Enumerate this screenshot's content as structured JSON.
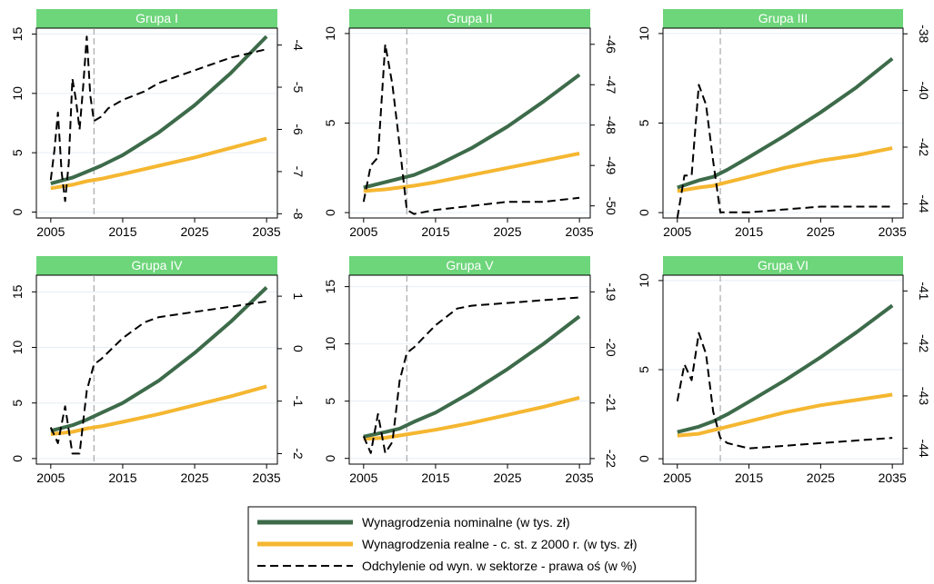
{
  "chart_data": {
    "type": "line",
    "panels": [
      {
        "title": "Grupa I",
        "x_ticks": [
          2005,
          2015,
          2025,
          2035
        ],
        "ylim_left": [
          -0.5,
          15.5
        ],
        "y_ticks_left": [
          0,
          5,
          10,
          15
        ],
        "ylim_right": [
          -8.1,
          -3.6
        ],
        "y_ticks_right": [
          -8,
          -7,
          -6,
          -5,
          -4
        ],
        "nominal": [
          [
            2005,
            2.4
          ],
          [
            2008,
            2.9
          ],
          [
            2010,
            3.4
          ],
          [
            2012,
            3.9
          ],
          [
            2015,
            4.8
          ],
          [
            2020,
            6.7
          ],
          [
            2025,
            9.0
          ],
          [
            2030,
            11.7
          ],
          [
            2035,
            14.8
          ]
        ],
        "real": [
          [
            2005,
            2.0
          ],
          [
            2008,
            2.3
          ],
          [
            2010,
            2.6
          ],
          [
            2012,
            2.8
          ],
          [
            2015,
            3.2
          ],
          [
            2020,
            3.9
          ],
          [
            2025,
            4.6
          ],
          [
            2030,
            5.4
          ],
          [
            2035,
            6.2
          ]
        ],
        "deviation": [
          [
            2005,
            -7.2
          ],
          [
            2005.5,
            -6.5
          ],
          [
            2006,
            -5.6
          ],
          [
            2006.5,
            -7.0
          ],
          [
            2007,
            -7.7
          ],
          [
            2007.5,
            -6.8
          ],
          [
            2008,
            -4.8
          ],
          [
            2008.5,
            -5.3
          ],
          [
            2009,
            -6.0
          ],
          [
            2009.5,
            -5.0
          ],
          [
            2010,
            -3.8
          ],
          [
            2010.5,
            -5.2
          ],
          [
            2011,
            -5.8
          ],
          [
            2012,
            -5.7
          ],
          [
            2013,
            -5.5
          ],
          [
            2015,
            -5.3
          ],
          [
            2018,
            -5.1
          ],
          [
            2020,
            -4.9
          ],
          [
            2025,
            -4.6
          ],
          [
            2030,
            -4.3
          ],
          [
            2035,
            -4.1
          ]
        ]
      },
      {
        "title": "Grupa II",
        "x_ticks": [
          2005,
          2015,
          2025,
          2035
        ],
        "ylim_left": [
          -0.3,
          10.3
        ],
        "y_ticks_left": [
          0,
          5,
          10
        ],
        "ylim_right": [
          -50.3,
          -45.6
        ],
        "y_ticks_right": [
          -50,
          -49,
          -48,
          -47,
          -46
        ],
        "nominal": [
          [
            2005,
            1.4
          ],
          [
            2008,
            1.7
          ],
          [
            2010,
            1.9
          ],
          [
            2012,
            2.1
          ],
          [
            2015,
            2.6
          ],
          [
            2020,
            3.6
          ],
          [
            2025,
            4.8
          ],
          [
            2030,
            6.2
          ],
          [
            2035,
            7.7
          ]
        ],
        "real": [
          [
            2005,
            1.2
          ],
          [
            2008,
            1.3
          ],
          [
            2010,
            1.4
          ],
          [
            2012,
            1.5
          ],
          [
            2015,
            1.7
          ],
          [
            2020,
            2.1
          ],
          [
            2025,
            2.5
          ],
          [
            2030,
            2.9
          ],
          [
            2035,
            3.3
          ]
        ],
        "deviation": [
          [
            2005,
            -49.9
          ],
          [
            2006,
            -49.0
          ],
          [
            2007,
            -48.8
          ],
          [
            2008,
            -46.0
          ],
          [
            2009,
            -47.0
          ],
          [
            2010,
            -48.5
          ],
          [
            2011,
            -50.1
          ],
          [
            2012,
            -50.2
          ],
          [
            2015,
            -50.1
          ],
          [
            2020,
            -50.0
          ],
          [
            2025,
            -49.9
          ],
          [
            2030,
            -49.9
          ],
          [
            2035,
            -49.8
          ]
        ]
      },
      {
        "title": "Grupa III",
        "x_ticks": [
          2005,
          2015,
          2025,
          2035
        ],
        "ylim_left": [
          -0.3,
          10.3
        ],
        "y_ticks_left": [
          0,
          5,
          10
        ],
        "ylim_right": [
          -44.5,
          -37.8
        ],
        "y_ticks_right": [
          -44,
          -42,
          -40,
          -38
        ],
        "nominal": [
          [
            2005,
            1.4
          ],
          [
            2008,
            1.8
          ],
          [
            2010,
            2.0
          ],
          [
            2012,
            2.4
          ],
          [
            2015,
            3.1
          ],
          [
            2020,
            4.3
          ],
          [
            2025,
            5.6
          ],
          [
            2030,
            7.0
          ],
          [
            2035,
            8.6
          ]
        ],
        "real": [
          [
            2005,
            1.2
          ],
          [
            2008,
            1.4
          ],
          [
            2010,
            1.5
          ],
          [
            2012,
            1.7
          ],
          [
            2015,
            2.0
          ],
          [
            2020,
            2.5
          ],
          [
            2025,
            2.9
          ],
          [
            2030,
            3.2
          ],
          [
            2035,
            3.6
          ]
        ],
        "deviation": [
          [
            2005,
            -44.5
          ],
          [
            2006,
            -43.0
          ],
          [
            2007,
            -43.0
          ],
          [
            2008,
            -39.8
          ],
          [
            2009,
            -40.5
          ],
          [
            2010,
            -42.5
          ],
          [
            2011,
            -44.3
          ],
          [
            2012,
            -44.3
          ],
          [
            2015,
            -44.3
          ],
          [
            2020,
            -44.2
          ],
          [
            2025,
            -44.1
          ],
          [
            2030,
            -44.1
          ],
          [
            2035,
            -44.1
          ]
        ]
      },
      {
        "title": "Grupa IV",
        "x_ticks": [
          2005,
          2015,
          2025,
          2035
        ],
        "ylim_left": [
          -0.5,
          16.5
        ],
        "y_ticks_left": [
          0,
          5,
          10,
          15
        ],
        "ylim_right": [
          -2.2,
          1.4
        ],
        "y_ticks_right": [
          -2,
          -1,
          0,
          1
        ],
        "nominal": [
          [
            2005,
            2.5
          ],
          [
            2008,
            3.0
          ],
          [
            2010,
            3.5
          ],
          [
            2012,
            4.1
          ],
          [
            2015,
            5.0
          ],
          [
            2020,
            7.0
          ],
          [
            2025,
            9.5
          ],
          [
            2030,
            12.3
          ],
          [
            2035,
            15.4
          ]
        ],
        "real": [
          [
            2005,
            2.2
          ],
          [
            2008,
            2.4
          ],
          [
            2010,
            2.7
          ],
          [
            2012,
            2.9
          ],
          [
            2015,
            3.3
          ],
          [
            2020,
            4.0
          ],
          [
            2025,
            4.8
          ],
          [
            2030,
            5.6
          ],
          [
            2035,
            6.5
          ]
        ],
        "deviation": [
          [
            2005,
            -1.5
          ],
          [
            2006,
            -1.8
          ],
          [
            2007,
            -1.1
          ],
          [
            2008,
            -2.0
          ],
          [
            2009,
            -2.0
          ],
          [
            2010,
            -0.8
          ],
          [
            2011,
            -0.3
          ],
          [
            2012,
            -0.2
          ],
          [
            2015,
            0.2
          ],
          [
            2018,
            0.5
          ],
          [
            2020,
            0.6
          ],
          [
            2025,
            0.7
          ],
          [
            2030,
            0.8
          ],
          [
            2035,
            0.9
          ]
        ]
      },
      {
        "title": "Grupa V",
        "x_ticks": [
          2005,
          2015,
          2025,
          2035
        ],
        "ylim_left": [
          -0.5,
          16.0
        ],
        "y_ticks_left": [
          0,
          5,
          10,
          15
        ],
        "ylim_right": [
          -22.1,
          -18.7
        ],
        "y_ticks_right": [
          -22,
          -21,
          -20,
          -19
        ],
        "nominal": [
          [
            2005,
            1.9
          ],
          [
            2008,
            2.3
          ],
          [
            2010,
            2.6
          ],
          [
            2012,
            3.2
          ],
          [
            2015,
            4.0
          ],
          [
            2020,
            5.8
          ],
          [
            2025,
            7.8
          ],
          [
            2030,
            10.0
          ],
          [
            2035,
            12.4
          ]
        ],
        "real": [
          [
            2005,
            1.7
          ],
          [
            2008,
            1.8
          ],
          [
            2010,
            2.0
          ],
          [
            2012,
            2.2
          ],
          [
            2015,
            2.5
          ],
          [
            2020,
            3.1
          ],
          [
            2025,
            3.8
          ],
          [
            2030,
            4.5
          ],
          [
            2035,
            5.3
          ]
        ],
        "deviation": [
          [
            2005,
            -21.6
          ],
          [
            2006,
            -21.9
          ],
          [
            2007,
            -21.2
          ],
          [
            2008,
            -21.9
          ],
          [
            2009,
            -21.7
          ],
          [
            2010,
            -20.6
          ],
          [
            2011,
            -20.1
          ],
          [
            2012,
            -20.0
          ],
          [
            2015,
            -19.6
          ],
          [
            2018,
            -19.3
          ],
          [
            2020,
            -19.25
          ],
          [
            2025,
            -19.2
          ],
          [
            2030,
            -19.15
          ],
          [
            2035,
            -19.1
          ]
        ]
      },
      {
        "title": "Grupa VI",
        "x_ticks": [
          2005,
          2015,
          2025,
          2035
        ],
        "ylim_left": [
          -0.3,
          10.3
        ],
        "y_ticks_left": [
          0,
          5,
          10
        ],
        "ylim_right": [
          -44.3,
          -40.7
        ],
        "y_ticks_right": [
          -44,
          -43,
          -42,
          -41
        ],
        "nominal": [
          [
            2005,
            1.5
          ],
          [
            2008,
            1.8
          ],
          [
            2010,
            2.1
          ],
          [
            2012,
            2.5
          ],
          [
            2015,
            3.2
          ],
          [
            2020,
            4.4
          ],
          [
            2025,
            5.7
          ],
          [
            2030,
            7.1
          ],
          [
            2035,
            8.6
          ]
        ],
        "real": [
          [
            2005,
            1.3
          ],
          [
            2008,
            1.4
          ],
          [
            2010,
            1.6
          ],
          [
            2012,
            1.8
          ],
          [
            2015,
            2.1
          ],
          [
            2020,
            2.6
          ],
          [
            2025,
            3.0
          ],
          [
            2030,
            3.3
          ],
          [
            2035,
            3.6
          ]
        ],
        "deviation": [
          [
            2005,
            -43.1
          ],
          [
            2006,
            -42.4
          ],
          [
            2007,
            -42.7
          ],
          [
            2008,
            -41.8
          ],
          [
            2009,
            -42.2
          ],
          [
            2010,
            -43.3
          ],
          [
            2011,
            -43.8
          ],
          [
            2012,
            -43.9
          ],
          [
            2015,
            -44.0
          ],
          [
            2020,
            -43.95
          ],
          [
            2025,
            -43.9
          ],
          [
            2030,
            -43.85
          ],
          [
            2035,
            -43.8
          ]
        ]
      }
    ],
    "vertical_line_x": 2011,
    "legend": [
      {
        "label": "Wynagrodzenia nominalne (w tys. zł)",
        "color": "#3d6b4a",
        "style": "solid-thick"
      },
      {
        "label": "Wynagrodzenia realne - c. st. z 2000 r. (w tys. zł)",
        "color": "#f5b731",
        "style": "solid-thick"
      },
      {
        "label": "Odchylenie od wyn. w sektorze - prawa oś (w %)",
        "color": "#000000",
        "style": "dashed"
      }
    ],
    "colors": {
      "nominal": "#3d6b4a",
      "real": "#f5b731",
      "deviation": "#000000",
      "header": "#6dd57a",
      "grid": "#e6eef4",
      "vline": "#999999"
    }
  }
}
